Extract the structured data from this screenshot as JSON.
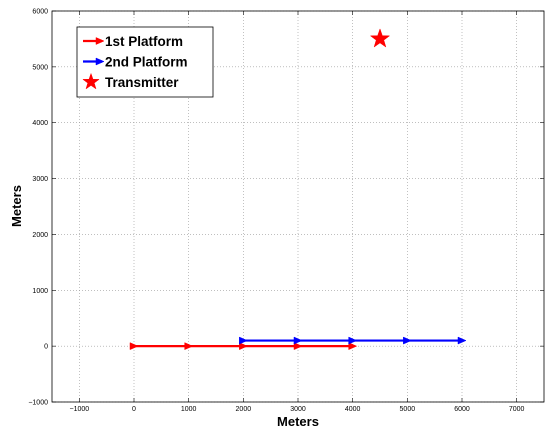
{
  "chart_data": {
    "type": "scatter",
    "title": "",
    "xlabel": "Meters",
    "ylabel": "Meters",
    "xlim": [
      -1500,
      7500
    ],
    "ylim": [
      -1000,
      6000
    ],
    "grid": true,
    "legend_position": "top-left",
    "xticks": [
      -1000,
      0,
      1000,
      2000,
      3000,
      4000,
      5000,
      6000,
      7000
    ],
    "xtick_labels": [
      "−1000",
      "0",
      "1000",
      "2000",
      "3000",
      "4000",
      "5000",
      "6000",
      "7000"
    ],
    "yticks": [
      -1000,
      0,
      1000,
      2000,
      3000,
      4000,
      5000,
      6000
    ],
    "ytick_labels": [
      "−1000",
      "0",
      "1000",
      "2000",
      "3000",
      "4000",
      "5000",
      "6000"
    ],
    "series": [
      {
        "name": "1st Platform",
        "color": "#ff0000",
        "marker": "arrow-right",
        "x": [
          0,
          1000,
          2000,
          3000,
          4000
        ],
        "y": [
          0,
          0,
          0,
          0,
          0
        ]
      },
      {
        "name": "2nd Platform",
        "color": "#0000ff",
        "marker": "arrow-right",
        "x": [
          2000,
          3000,
          4000,
          5000,
          6000
        ],
        "y": [
          100,
          100,
          100,
          100,
          100
        ]
      },
      {
        "name": "Transmitter",
        "color": "#ff0000",
        "marker": "star",
        "x": [
          4500
        ],
        "y": [
          5500
        ]
      }
    ]
  }
}
